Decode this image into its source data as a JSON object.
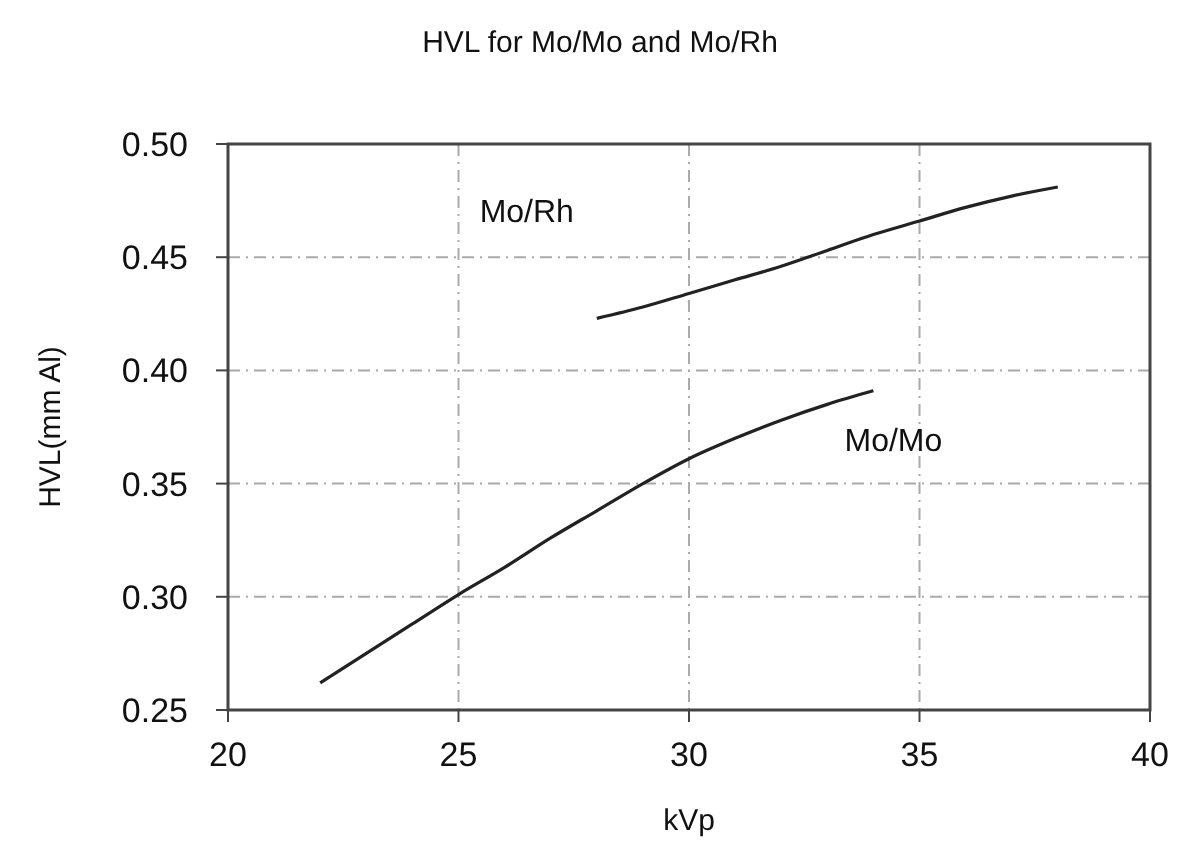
{
  "chart_data": {
    "type": "line",
    "title": "HVL  for Mo/Mo and Mo/Rh",
    "xlabel": "kVp",
    "ylabel": "HVL(mm Al)",
    "xlim": [
      20,
      40
    ],
    "xticks": [
      20,
      25,
      30,
      35,
      40
    ],
    "ylim": [
      0.25,
      0.5
    ],
    "yticks": [
      {
        "value": 0.25,
        "label": "0.25"
      },
      {
        "value": 0.3,
        "label": "0.30"
      },
      {
        "value": 0.35,
        "label": "0.35"
      },
      {
        "value": 0.4,
        "label": "0.40"
      },
      {
        "value": 0.45,
        "label": "0.45"
      },
      {
        "value": 0.5,
        "label": "0.50"
      }
    ],
    "grid": true,
    "series": [
      {
        "name": "Mo/Rh",
        "color": "#222222",
        "x": [
          28,
          29,
          30,
          31,
          32,
          33,
          34,
          35,
          36,
          37,
          38
        ],
        "values": [
          0.423,
          0.428,
          0.434,
          0.44,
          0.446,
          0.453,
          0.46,
          0.466,
          0.472,
          0.477,
          0.481
        ]
      },
      {
        "name": "Mo/Mo",
        "color": "#222222",
        "x": [
          22,
          23,
          24,
          25,
          26,
          27,
          28,
          29,
          30,
          31,
          32,
          33,
          34
        ],
        "values": [
          0.262,
          0.275,
          0.288,
          0.301,
          0.313,
          0.326,
          0.338,
          0.35,
          0.361,
          0.37,
          0.378,
          0.385,
          0.391
        ]
      }
    ]
  }
}
